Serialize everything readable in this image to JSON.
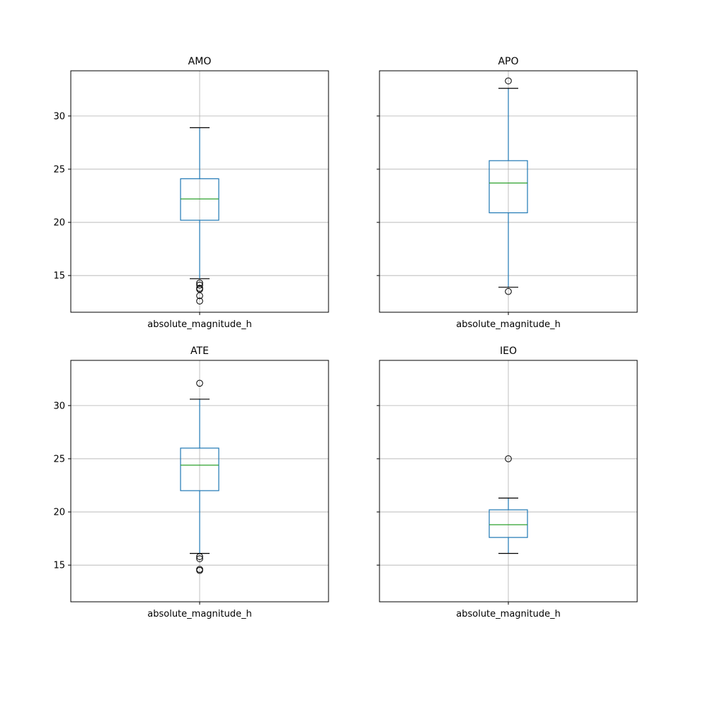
{
  "chart_data": [
    {
      "type": "box",
      "title": "AMO",
      "categories": [
        "absolute_magnitude_h"
      ],
      "ylim": [
        11.55,
        34.25
      ],
      "yticks": [
        15,
        20,
        25,
        30
      ],
      "grid": true,
      "box": {
        "whisker_low": 14.7,
        "q1": 20.2,
        "median": 22.2,
        "q3": 24.1,
        "whisker_high": 28.9
      },
      "outliers": [
        14.3,
        14.1,
        13.8,
        13.7,
        13.1,
        12.6
      ]
    },
    {
      "type": "box",
      "title": "APO",
      "categories": [
        "absolute_magnitude_h"
      ],
      "ylim": [
        11.55,
        34.25
      ],
      "yticks": [
        15,
        20,
        25,
        30
      ],
      "grid": true,
      "box": {
        "whisker_low": 13.9,
        "q1": 20.9,
        "median": 23.7,
        "q3": 25.8,
        "whisker_high": 32.6
      },
      "outliers": [
        33.3,
        13.5
      ]
    },
    {
      "type": "box",
      "title": "ATE",
      "categories": [
        "absolute_magnitude_h"
      ],
      "ylim": [
        11.55,
        34.25
      ],
      "yticks": [
        15,
        20,
        25,
        30
      ],
      "grid": true,
      "box": {
        "whisker_low": 16.1,
        "q1": 22.0,
        "median": 24.4,
        "q3": 26.0,
        "whisker_high": 30.6
      },
      "outliers": [
        32.1,
        15.8,
        15.6,
        14.6,
        14.5
      ]
    },
    {
      "type": "box",
      "title": "IEO",
      "categories": [
        "absolute_magnitude_h"
      ],
      "ylim": [
        11.55,
        34.25
      ],
      "yticks": [
        15,
        20,
        25,
        30
      ],
      "grid": true,
      "box": {
        "whisker_low": 16.1,
        "q1": 17.6,
        "median": 18.8,
        "q3": 20.2,
        "whisker_high": 21.3
      },
      "outliers": [
        25.0
      ]
    }
  ],
  "colors": {
    "box": "#1f77b4",
    "median": "#2ca02c",
    "grid": "#b0b0b0",
    "axes": "#000000"
  }
}
